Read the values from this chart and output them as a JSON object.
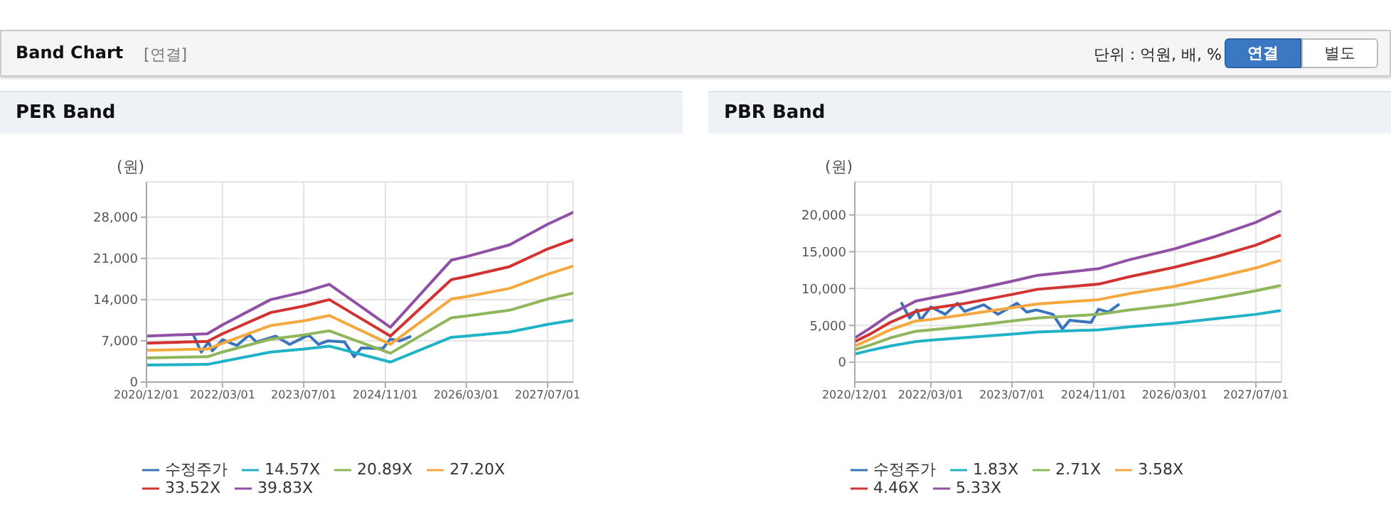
{
  "chart_data": [
    {
      "type": "line",
      "title": "PER Band",
      "ylabel": "(원)",
      "annotations": [
        "Band Chart",
        "[연결]",
        "단위 : 억원, 배, %",
        "연결",
        "별도"
      ],
      "xlim": [
        "2020-12-01",
        "2027-12-01"
      ],
      "xticks": [
        {
          "value": "2020-12-01",
          "label": "2020/12/01"
        },
        {
          "value": "2022-03-01",
          "label": "2022/03/01"
        },
        {
          "value": "2023-07-01",
          "label": "2023/07/01"
        },
        {
          "value": "2024-11-01",
          "label": "2024/11/01"
        },
        {
          "value": "2026-03-01",
          "label": "2026/03/01"
        },
        {
          "value": "2027-07-01",
          "label": "2027/07/01"
        }
      ],
      "ylim": [
        0,
        34000
      ],
      "yticks": [
        0,
        {
          "value": 7000,
          "label": "7,000"
        },
        {
          "value": 14000,
          "label": "14,000"
        },
        {
          "value": 21000,
          "label": "21,000"
        },
        {
          "value": 28000,
          "label": "28,000"
        }
      ],
      "grid": true,
      "legend": "bottom",
      "marker": "none",
      "line_style": "solid",
      "series": [
        {
          "name": "수정주가",
          "color": "#3a74bd",
          "x": [
            "2021-09-08",
            "2021-10-25",
            "2021-12-08",
            "2021-12-30",
            "2022-03-02",
            "2022-05-27",
            "2022-08-08",
            "2022-09-20",
            "2023-01-13",
            "2023-04-08",
            "2023-07-30",
            "2023-09-27",
            "2023-11-24",
            "2024-03-02",
            "2024-04-28",
            "2024-06-10",
            "2024-10-17",
            "2024-11-30",
            "2025-01-27",
            "2025-03-29"
          ],
          "values": [
            8000,
            5100,
            6800,
            5300,
            7200,
            6200,
            8000,
            6800,
            7800,
            6400,
            8000,
            6400,
            7000,
            6800,
            4300,
            5800,
            5700,
            7300,
            7000,
            7700
          ]
        },
        {
          "name": "14.57X",
          "color": "#20b3c7",
          "x": [
            "2020-12-01",
            "2021-12-01",
            "2022-03-01",
            "2022-12-15",
            "2023-07-01",
            "2023-12-01",
            "2024-12-01",
            "2025-12-01",
            "2026-03-01",
            "2026-11-15",
            "2027-07-01",
            "2027-12-01"
          ],
          "values": [
            2900,
            3000,
            3500,
            5100,
            5600,
            6100,
            3400,
            7600,
            7800,
            8500,
            9800,
            10500
          ]
        },
        {
          "name": "20.89X",
          "color": "#8fb65a",
          "x": [
            "2020-12-01",
            "2021-12-01",
            "2022-03-01",
            "2022-12-15",
            "2023-07-01",
            "2023-12-01",
            "2024-12-01",
            "2025-12-01",
            "2026-03-01",
            "2026-11-15",
            "2027-07-01",
            "2027-12-01"
          ],
          "values": [
            4100,
            4300,
            5100,
            7300,
            8000,
            8700,
            4900,
            10900,
            11200,
            12200,
            14100,
            15100
          ]
        },
        {
          "name": "27.20X",
          "color": "#f4a83d",
          "x": [
            "2020-12-01",
            "2021-12-01",
            "2022-03-01",
            "2022-12-15",
            "2023-07-01",
            "2023-12-01",
            "2024-12-01",
            "2025-12-01",
            "2026-03-01",
            "2026-11-15",
            "2027-07-01",
            "2027-12-01"
          ],
          "values": [
            5400,
            5600,
            6600,
            9600,
            10400,
            11300,
            6400,
            14100,
            14500,
            15900,
            18300,
            19700
          ]
        },
        {
          "name": "33.52X",
          "color": "#d13330",
          "x": [
            "2020-12-01",
            "2021-12-01",
            "2022-03-01",
            "2022-12-15",
            "2023-07-01",
            "2023-12-01",
            "2024-12-01",
            "2025-12-01",
            "2026-03-01",
            "2026-11-15",
            "2027-07-01",
            "2027-12-01"
          ],
          "values": [
            6600,
            6900,
            8200,
            11800,
            12900,
            14000,
            7800,
            17400,
            17900,
            19600,
            22600,
            24200
          ]
        },
        {
          "name": "39.83X",
          "color": "#8f50a6",
          "x": [
            "2020-12-01",
            "2021-12-01",
            "2022-03-01",
            "2022-12-15",
            "2023-07-01",
            "2023-12-01",
            "2024-12-01",
            "2025-12-01",
            "2026-03-01",
            "2026-11-15",
            "2027-07-01",
            "2027-12-01"
          ],
          "values": [
            7800,
            8200,
            9700,
            14000,
            15300,
            16600,
            9300,
            20700,
            21300,
            23300,
            26800,
            28800
          ]
        }
      ]
    },
    {
      "type": "line",
      "title": "PBR Band",
      "ylabel": "(원)",
      "xlim": [
        "2020-12-01",
        "2027-12-01"
      ],
      "xticks": [
        {
          "value": "2020-12-01",
          "label": "2020/12/01"
        },
        {
          "value": "2022-03-01",
          "label": "2022/03/01"
        },
        {
          "value": "2023-07-01",
          "label": "2023/07/01"
        },
        {
          "value": "2024-11-01",
          "label": "2024/11/01"
        },
        {
          "value": "2026-03-01",
          "label": "2026/03/01"
        },
        {
          "value": "2027-07-01",
          "label": "2027/07/01"
        }
      ],
      "ylim": [
        -2700,
        24500
      ],
      "yticks": [
        0,
        {
          "value": 5000,
          "label": "5,000"
        },
        {
          "value": 10000,
          "label": "10,000"
        },
        {
          "value": 15000,
          "label": "15,000"
        },
        {
          "value": 20000,
          "label": "20,000"
        }
      ],
      "grid": true,
      "legend": "bottom",
      "marker": "none",
      "line_style": "solid",
      "series": [
        {
          "name": "수정주가",
          "color": "#3a74bd",
          "x": [
            "2021-09-08",
            "2021-10-25",
            "2021-12-08",
            "2021-12-30",
            "2022-03-02",
            "2022-05-27",
            "2022-08-08",
            "2022-09-20",
            "2023-01-13",
            "2023-04-08",
            "2023-07-30",
            "2023-09-27",
            "2023-11-24",
            "2024-03-02",
            "2024-04-28",
            "2024-06-10",
            "2024-10-17",
            "2024-11-30",
            "2025-01-27",
            "2025-03-29"
          ],
          "values": [
            8000,
            6000,
            7100,
            5700,
            7500,
            6500,
            8000,
            6900,
            7800,
            6500,
            8000,
            6800,
            7100,
            6500,
            4500,
            5700,
            5400,
            7200,
            6800,
            7800
          ]
        },
        {
          "name": "1.83X",
          "color": "#20b3c7",
          "x": [
            "2020-12-01",
            "2021-03-01",
            "2021-07-01",
            "2021-12-01",
            "2022-03-01",
            "2022-09-01",
            "2023-07-01",
            "2023-12-01",
            "2024-12-01",
            "2025-06-01",
            "2026-03-01",
            "2026-11-01",
            "2027-07-01",
            "2027-11-20"
          ],
          "values": [
            1100,
            1600,
            2200,
            2800,
            3000,
            3300,
            3800,
            4100,
            4400,
            4800,
            5300,
            5900,
            6500,
            7000
          ]
        },
        {
          "name": "2.71X",
          "color": "#8fb65a",
          "x": [
            "2020-12-01",
            "2021-03-01",
            "2021-07-01",
            "2021-12-01",
            "2022-03-01",
            "2022-09-01",
            "2023-07-01",
            "2023-12-01",
            "2024-12-01",
            "2025-06-01",
            "2026-03-01",
            "2026-11-01",
            "2027-07-01",
            "2027-11-20"
          ],
          "values": [
            1700,
            2300,
            3300,
            4200,
            4400,
            4800,
            5600,
            6000,
            6500,
            7100,
            7800,
            8700,
            9700,
            10400
          ]
        },
        {
          "name": "3.58X",
          "color": "#f4a83d",
          "x": [
            "2020-12-01",
            "2021-03-01",
            "2021-07-01",
            "2021-12-01",
            "2022-03-01",
            "2022-09-01",
            "2023-07-01",
            "2023-12-01",
            "2024-12-01",
            "2025-06-01",
            "2026-03-01",
            "2026-11-01",
            "2027-07-01",
            "2027-11-20"
          ],
          "values": [
            2200,
            3100,
            4400,
            5600,
            5800,
            6400,
            7400,
            7900,
            8500,
            9300,
            10300,
            11500,
            12800,
            13800
          ]
        },
        {
          "name": "4.46X",
          "color": "#d13330",
          "x": [
            "2020-12-01",
            "2021-03-01",
            "2021-07-01",
            "2021-12-01",
            "2022-03-01",
            "2022-09-01",
            "2023-07-01",
            "2023-12-01",
            "2024-12-01",
            "2025-06-01",
            "2026-03-01",
            "2026-11-01",
            "2027-07-01",
            "2027-11-20"
          ],
          "values": [
            2800,
            3800,
            5400,
            6900,
            7300,
            7900,
            9200,
            9900,
            10600,
            11600,
            12900,
            14300,
            15900,
            17200
          ]
        },
        {
          "name": "5.33X",
          "color": "#8f50a6",
          "x": [
            "2020-12-01",
            "2021-03-01",
            "2021-07-01",
            "2021-12-01",
            "2022-03-01",
            "2022-09-01",
            "2023-07-01",
            "2023-12-01",
            "2024-12-01",
            "2025-06-01",
            "2026-03-01",
            "2026-11-01",
            "2027-07-01",
            "2027-11-20"
          ],
          "values": [
            3300,
            4600,
            6500,
            8300,
            8700,
            9500,
            11000,
            11800,
            12700,
            13900,
            15400,
            17100,
            19000,
            20500
          ]
        }
      ]
    }
  ]
}
